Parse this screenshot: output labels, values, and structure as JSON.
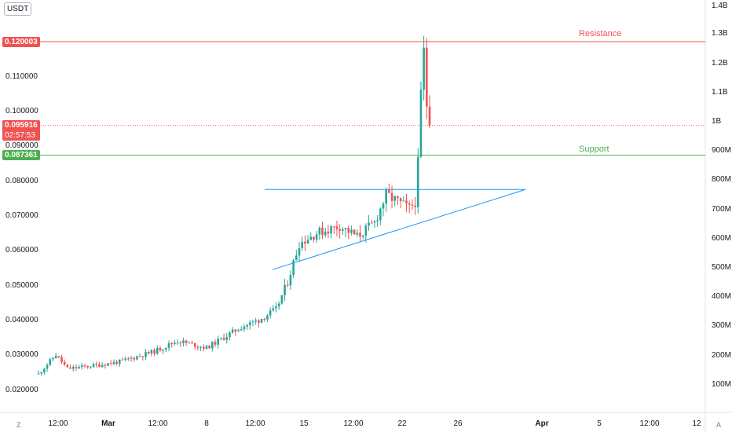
{
  "symbol_unit": "USDT",
  "corner_left": "Z",
  "corner_right": "A",
  "price_badge": {
    "value": "0.095916",
    "countdown": "02:57:53",
    "color": "#ef5350"
  },
  "lines": {
    "resistance": {
      "label": "Resistance",
      "price_label": "0.120003",
      "color": "#ef5350"
    },
    "support": {
      "label": "Support",
      "price_label": "0.087361",
      "color": "#4caf50"
    }
  },
  "colors": {
    "up": "#26a69a",
    "down": "#ef5350",
    "trendline": "#2196f3",
    "grid": "#f0f3fa"
  },
  "chart_data": {
    "type": "candlestick",
    "y_axis_left": {
      "ticks": [
        "0.110000",
        "0.100000",
        "0.090000",
        "0.080000",
        "0.070000",
        "0.060000",
        "0.050000",
        "0.040000",
        "0.030000",
        "0.020000"
      ],
      "ylim": [
        0.0185,
        0.1445
      ]
    },
    "y_axis_right": {
      "ticks": [
        "1.4B",
        "1.3B",
        "1.2B",
        "1.1B",
        "1B",
        "900M",
        "800M",
        "700M",
        "600M",
        "500M",
        "400M",
        "300M",
        "200M",
        "100M"
      ]
    },
    "x_axis": {
      "ticks": [
        "12:00",
        "Mar",
        "12:00",
        "8",
        "12:00",
        "15",
        "12:00",
        "22",
        "26",
        "Apr",
        "5",
        "12:00",
        "12"
      ]
    },
    "annotations": {
      "resistance_price": 0.120003,
      "support_price": 0.087361,
      "current_price": 0.095916,
      "ascending_triangle": {
        "top": 0.0775,
        "lower_start": 0.0545,
        "lower_end": 0.0775
      }
    }
  }
}
